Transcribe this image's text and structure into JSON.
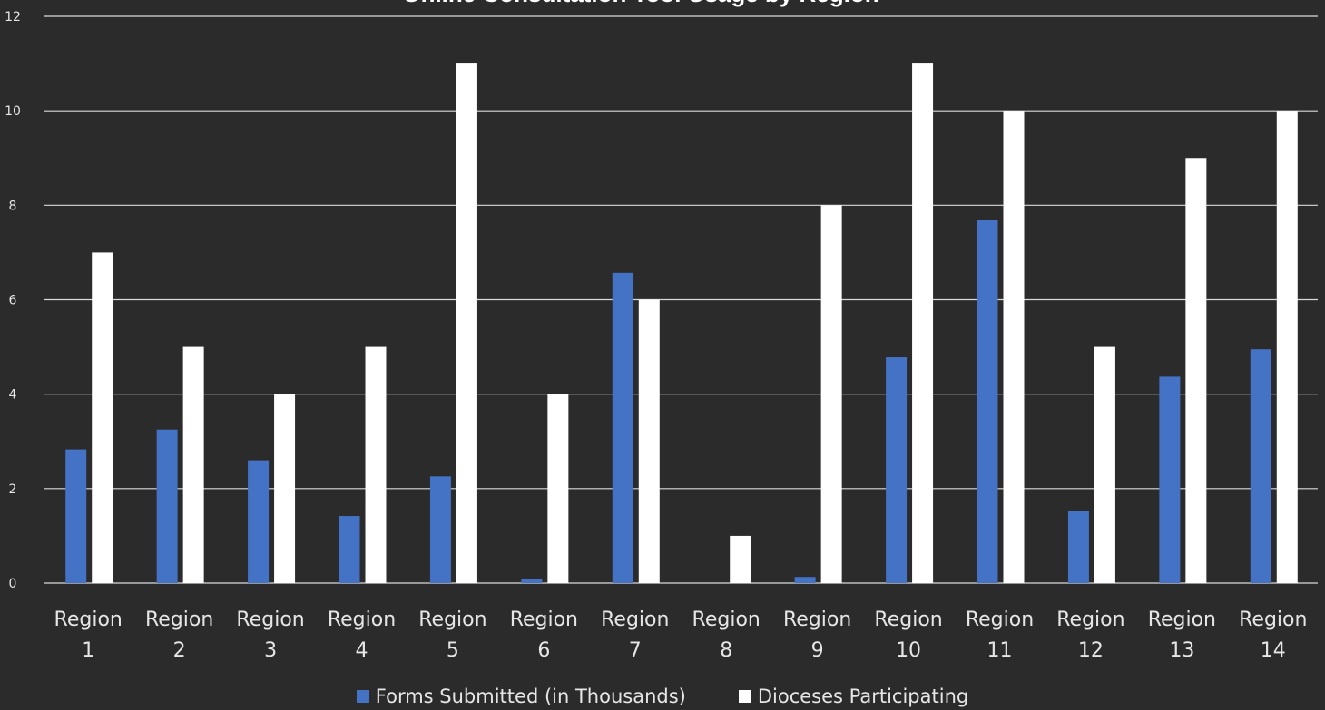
{
  "chart_data": {
    "type": "bar",
    "title": "Online Consultation Tool Usage by Region",
    "categories": [
      [
        "Region",
        "1"
      ],
      [
        "Region",
        "2"
      ],
      [
        "Region",
        "3"
      ],
      [
        "Region",
        "4"
      ],
      [
        "Region",
        "5"
      ],
      [
        "Region",
        "6"
      ],
      [
        "Region",
        "7"
      ],
      [
        "Region",
        "8"
      ],
      [
        "Region",
        "9"
      ],
      [
        "Region",
        "10"
      ],
      [
        "Region",
        "11"
      ],
      [
        "Region",
        "12"
      ],
      [
        "Region",
        "13"
      ],
      [
        "Region",
        "14"
      ]
    ],
    "series": [
      {
        "name": "Forms Submitted (in Thousands)",
        "color": "#4472c4",
        "values": [
          2.83,
          3.25,
          2.6,
          1.42,
          2.26,
          0.08,
          6.57,
          0,
          0.13,
          4.78,
          7.68,
          1.53,
          4.37,
          4.95
        ]
      },
      {
        "name": "Dioceses Participating",
        "color": "#ffffff",
        "values": [
          7,
          5,
          4,
          5,
          11,
          4,
          6,
          1,
          8,
          11,
          10,
          5,
          9,
          10
        ]
      }
    ],
    "ylim": [
      0,
      12
    ],
    "yticks": [
      0,
      2,
      4,
      6,
      8,
      10,
      12
    ],
    "grid": true,
    "legend_position": "bottom",
    "grid_color": "#d9d9d9",
    "background": "#2b2b2b"
  }
}
